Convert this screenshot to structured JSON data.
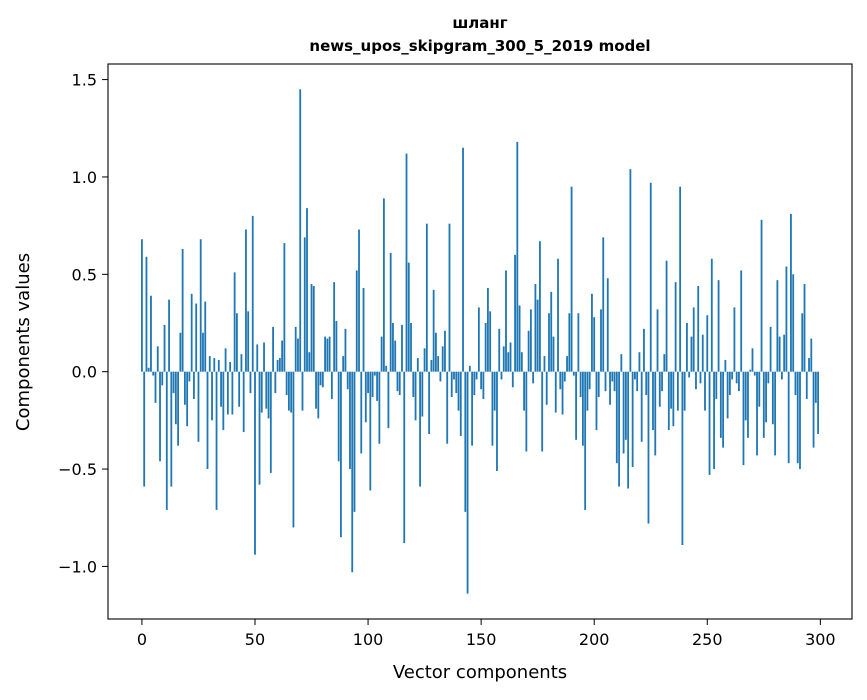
{
  "chart_data": {
    "type": "bar",
    "title_lines": [
      "шланг",
      "news_upos_skipgram_300_5_2019 model"
    ],
    "xlabel": "Vector components",
    "ylabel": "Components values",
    "xlim": [
      -15,
      314
    ],
    "ylim": [
      -1.27,
      1.58
    ],
    "xticks": [
      0,
      50,
      100,
      150,
      200,
      250,
      300
    ],
    "yticks": [
      -1.0,
      -0.5,
      0.0,
      0.5,
      1.0,
      1.5
    ],
    "ytick_labels": [
      "−1.0",
      "−0.5",
      "0.0",
      "0.5",
      "1.0",
      "1.5"
    ],
    "bar_color": "#1f77b4",
    "grid": false,
    "legend": "none",
    "values": [
      0.68,
      -0.59,
      0.59,
      0.02,
      0.39,
      -0.02,
      -0.16,
      0.13,
      -0.46,
      -0.07,
      0.24,
      -0.71,
      0.37,
      -0.59,
      -0.11,
      -0.27,
      -0.38,
      0.2,
      0.63,
      -0.17,
      -0.28,
      -0.05,
      0.4,
      -0.14,
      0.35,
      -0.36,
      0.68,
      0.2,
      0.36,
      -0.5,
      0.08,
      -0.25,
      0.07,
      -0.71,
      0.06,
      -0.18,
      -0.3,
      0.12,
      -0.22,
      0.05,
      -0.22,
      0.51,
      0.3,
      -0.18,
      0.09,
      -0.31,
      0.73,
      0.31,
      -0.11,
      0.8,
      -0.94,
      0.14,
      -0.58,
      -0.21,
      0.15,
      -0.19,
      -0.24,
      -0.52,
      0.23,
      -0.11,
      0.06,
      0.07,
      0.16,
      0.66,
      -0.12,
      -0.2,
      -0.21,
      -0.8,
      0.23,
      0.17,
      1.45,
      -0.2,
      0.69,
      0.84,
      0.1,
      0.45,
      0.44,
      -0.19,
      -0.24,
      -0.07,
      -0.08,
      0.18,
      0.17,
      0.18,
      -0.14,
      0.46,
      0.26,
      -0.46,
      -0.85,
      0.08,
      0.22,
      -0.09,
      -0.5,
      -1.03,
      -0.72,
      0.52,
      0.73,
      -0.42,
      0.43,
      -0.26,
      -0.11,
      -0.61,
      -0.13,
      -0.02,
      -0.15,
      -0.37,
      0.18,
      0.89,
      0.03,
      -0.29,
      0.61,
      0.25,
      0.16,
      -0.1,
      -0.12,
      0.24,
      -0.88,
      1.12,
      0.56,
      0.25,
      -0.13,
      -0.25,
      0.07,
      -0.59,
      -0.23,
      0.12,
      0.76,
      -0.32,
      0.06,
      0.42,
      0.2,
      0.08,
      -0.05,
      0.13,
      0.21,
      -0.37,
      0.76,
      -0.13,
      -0.04,
      -0.11,
      -0.2,
      -0.33,
      1.15,
      -0.72,
      -1.14,
      0.03,
      -0.38,
      -0.12,
      -0.04,
      0.33,
      -0.09,
      -0.14,
      0.25,
      0.43,
      0.31,
      -0.38,
      -0.2,
      -0.51,
      0.22,
      -0.04,
      0.13,
      0.52,
      0.1,
      0.15,
      -0.08,
      0.6,
      1.18,
      0.34,
      0.1,
      -0.2,
      -0.41,
      0.21,
      0.32,
      -0.06,
      0.45,
      0.37,
      0.67,
      -0.41,
      0.08,
      -0.17,
      0.3,
      0.41,
      0.18,
      -0.21,
      0.58,
      -0.09,
      -0.22,
      -0.05,
      0.08,
      0.3,
      0.95,
      -0.02,
      -0.35,
      0.3,
      -0.13,
      -0.38,
      -0.71,
      -0.2,
      -0.09,
      0.4,
      0.28,
      -0.3,
      -0.13,
      0.32,
      0.69,
      -0.1,
      0.48,
      -0.17,
      -0.05,
      -0.1,
      -0.47,
      -0.59,
      0.09,
      -0.42,
      -0.35,
      -0.6,
      1.04,
      -0.49,
      -0.04,
      -0.1,
      0.1,
      -0.36,
      0.22,
      -0.12,
      -0.78,
      0.97,
      -0.3,
      -0.43,
      0.32,
      -0.18,
      -0.1,
      0.09,
      0.57,
      -0.3,
      -0.19,
      -0.28,
      0.46,
      -0.2,
      0.95,
      -0.89,
      -0.2,
      0.25,
      -0.03,
      0.18,
      0.33,
      -0.09,
      0.44,
      -0.06,
      0.19,
      -0.2,
      0.29,
      -0.53,
      0.58,
      -0.5,
      -0.14,
      0.47,
      -0.34,
      -0.39,
      0.06,
      -0.24,
      -0.12,
      -0.04,
      0.33,
      -0.06,
      -0.1,
      0.52,
      -0.48,
      -0.25,
      -0.34,
      0.01,
      0.12,
      -0.02,
      -0.43,
      -0.18,
      0.78,
      -0.34,
      -0.26,
      -0.06,
      0.23,
      -0.27,
      -0.43,
      0.47,
      0.18,
      -0.04,
      0.19,
      0.54,
      -0.47,
      0.81,
      0.5,
      -0.12,
      -0.47,
      -0.5,
      0.3,
      0.45,
      -0.14,
      0.07,
      0.17,
      -0.39,
      -0.16,
      -0.32
    ]
  }
}
